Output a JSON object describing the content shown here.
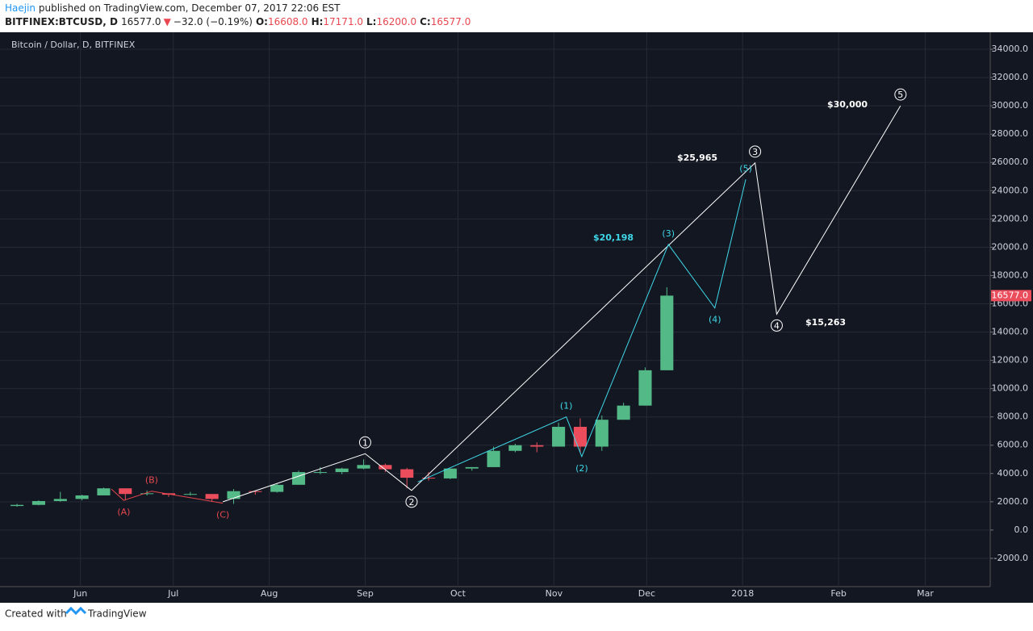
{
  "header": {
    "author": "Haejin",
    "published": " published on TradingView.com, December 07, 2017 22:06 EST",
    "symbol": "BITFINEX:BTCUSD, D",
    "price": "16577.0",
    "arrow": "▼",
    "change": "−32.0 (−0.19%)",
    "o_label": "O:",
    "o": "16608.0",
    "h_label": "H:",
    "h": "17171.0",
    "l_label": "L:",
    "l": "16200.0",
    "c_label": "C:",
    "c": "16577.0"
  },
  "footer": {
    "text": "Created with",
    "brand": "TradingView"
  },
  "chart_data": {
    "type": "candlestick",
    "title": "Bitcoin / Dollar, D, BITFINEX",
    "up_color": "#53b987",
    "down_color": "#eb4d5c",
    "grid": true,
    "xlim": [
      "2017-05-06",
      "2018-03-22"
    ],
    "xticks": [
      {
        "value": "2017-06-01",
        "label": "Jun"
      },
      {
        "value": "2017-07-01",
        "label": "Jul"
      },
      {
        "value": "2017-08-01",
        "label": "Aug"
      },
      {
        "value": "2017-09-01",
        "label": "Sep"
      },
      {
        "value": "2017-10-01",
        "label": "Oct"
      },
      {
        "value": "2017-11-01",
        "label": "Nov"
      },
      {
        "value": "2017-12-01",
        "label": "Dec"
      },
      {
        "value": "2018-01-01",
        "label": "2018"
      },
      {
        "value": "2018-02-01",
        "label": "Feb"
      },
      {
        "value": "2018-03-01",
        "label": "Mar"
      }
    ],
    "ylim": [
      -4000,
      35200
    ],
    "yticks": [
      {
        "value": -2000,
        "label": "-2000.0"
      },
      {
        "value": 0,
        "label": "0.0"
      },
      {
        "value": 2000,
        "label": "2000.0"
      },
      {
        "value": 4000,
        "label": "4000.0"
      },
      {
        "value": 6000,
        "label": "6000.0"
      },
      {
        "value": 8000,
        "label": "8000.0"
      },
      {
        "value": 10000,
        "label": "10000.0"
      },
      {
        "value": 12000,
        "label": "12000.0"
      },
      {
        "value": 14000,
        "label": "14000.0"
      },
      {
        "value": 16000,
        "label": "16000.0"
      },
      {
        "value": 18000,
        "label": "18000.0"
      },
      {
        "value": 20000,
        "label": "20000.0"
      },
      {
        "value": 22000,
        "label": "22000.0"
      },
      {
        "value": 24000,
        "label": "24000.0"
      },
      {
        "value": 26000,
        "label": "26000.0"
      },
      {
        "value": 28000,
        "label": "28000.0"
      },
      {
        "value": 30000,
        "label": "30000.0"
      },
      {
        "value": 32000,
        "label": "32000.0"
      },
      {
        "value": 34000,
        "label": "34000.0"
      }
    ],
    "x": [
      "2017-05-08",
      "2017-05-15",
      "2017-05-22",
      "2017-05-29",
      "2017-06-05",
      "2017-06-12",
      "2017-06-19",
      "2017-06-26",
      "2017-07-03",
      "2017-07-10",
      "2017-07-17",
      "2017-07-24",
      "2017-07-31",
      "2017-08-07",
      "2017-08-14",
      "2017-08-21",
      "2017-08-28",
      "2017-09-04",
      "2017-09-11",
      "2017-09-18",
      "2017-09-25",
      "2017-10-02",
      "2017-10-09",
      "2017-10-16",
      "2017-10-23",
      "2017-10-30",
      "2017-11-06",
      "2017-11-13",
      "2017-11-20",
      "2017-11-27",
      "2017-12-04"
    ],
    "open": [
      1700,
      1780,
      2050,
      2200,
      2450,
      2950,
      2550,
      2600,
      2500,
      2550,
      2200,
      2750,
      2700,
      3200,
      4100,
      4100,
      4350,
      4600,
      4300,
      3700,
      3650,
      4350,
      4450,
      5600,
      6000,
      5900,
      7300,
      5900,
      7800,
      8800,
      11300
    ],
    "high": [
      1850,
      2100,
      2700,
      2500,
      3000,
      2950,
      2800,
      2600,
      2700,
      2550,
      2900,
      2800,
      3300,
      4200,
      4450,
      4400,
      5000,
      4700,
      4400,
      4100,
      4350,
      4450,
      5900,
      6100,
      6200,
      7600,
      7900,
      8100,
      9000,
      11500,
      17171
    ],
    "low": [
      1650,
      1750,
      2000,
      2100,
      2450,
      2100,
      2450,
      2350,
      2450,
      2000,
      1850,
      2500,
      2650,
      3200,
      3950,
      3950,
      4300,
      4100,
      2950,
      3500,
      3600,
      4200,
      4450,
      5500,
      5500,
      5900,
      5500,
      5600,
      7800,
      8800,
      11300
    ],
    "close": [
      1780,
      2050,
      2200,
      2450,
      2950,
      2550,
      2600,
      2500,
      2550,
      2200,
      2750,
      2700,
      3200,
      4100,
      4100,
      4350,
      4600,
      4300,
      3700,
      3650,
      4350,
      4450,
      5600,
      6000,
      5900,
      7300,
      5900,
      7800,
      8800,
      11300,
      16577
    ],
    "last_price": {
      "value": 16577,
      "label": "16577.0"
    },
    "waves": [
      {
        "color": "#ffffff",
        "style": "circle",
        "x": [
          "2017-07-17",
          "2017-09-01",
          "2017-09-16",
          "2018-01-05",
          "2018-01-12",
          "2018-02-21"
        ],
        "values": [
          2000,
          5400,
          2800,
          25965,
          15263,
          30000
        ],
        "labels": [
          null,
          "1",
          "2",
          "3",
          "4",
          "5"
        ]
      },
      {
        "color": "#3fd8e8",
        "style": "text",
        "x": [
          "2017-09-18",
          "2017-11-05",
          "2017-11-10",
          "2017-12-08",
          "2017-12-23",
          "2018-01-02"
        ],
        "values": [
          3400,
          8000,
          5200,
          20198,
          15700,
          24800
        ],
        "labels": [
          null,
          "(1)",
          "(2)",
          "(3)",
          "(4)",
          "(5)"
        ]
      },
      {
        "color": "#e8474f",
        "style": "text",
        "x": [
          "2017-06-11",
          "2017-06-15",
          "2017-06-24",
          "2017-07-17"
        ],
        "values": [
          2900,
          2100,
          2750,
          1900
        ],
        "labels": [
          null,
          "(A)",
          "(B)",
          "(C)"
        ]
      }
    ],
    "price_labels": [
      {
        "text": "$30,000",
        "color": "#ffffff"
      },
      {
        "text": "$25,965",
        "color": "#ffffff"
      },
      {
        "text": "$20,198",
        "color": "#3fd8e8"
      },
      {
        "text": "$15,263",
        "color": "#ffffff"
      }
    ]
  }
}
